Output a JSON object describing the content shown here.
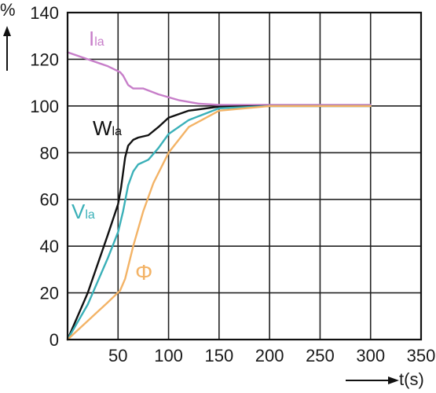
{
  "chart_data": {
    "type": "line",
    "title": "",
    "xlabel": "t(s)",
    "ylabel": "%",
    "xlim": [
      0,
      350
    ],
    "ylim": [
      0,
      140
    ],
    "grid": true,
    "x_ticks": [
      "50",
      "100",
      "150",
      "200",
      "250",
      "300",
      "350"
    ],
    "x_tick_values": [
      50,
      100,
      150,
      200,
      250,
      300,
      350
    ],
    "y_ticks": [
      "0",
      "20",
      "40",
      "60",
      "80",
      "100",
      "120",
      "140"
    ],
    "y_tick_values": [
      0,
      20,
      40,
      60,
      80,
      100,
      120,
      140
    ],
    "series": [
      {
        "label_main": "I",
        "label_sub": "la",
        "color": "#c77ec9",
        "x": [
          0,
          20,
          40,
          52,
          55,
          60,
          65,
          75,
          90,
          110,
          130,
          150,
          170,
          200,
          250,
          300
        ],
        "y": [
          123,
          120,
          117,
          114.5,
          113,
          109,
          107.5,
          107.5,
          105,
          102.5,
          101,
          100.5,
          100.5,
          100.5,
          100.5,
          100.5
        ]
      },
      {
        "label_main": "W",
        "label_sub": "la",
        "color": "#111111",
        "x": [
          0,
          20,
          40,
          50,
          53,
          57,
          60,
          65,
          70,
          80,
          90,
          100,
          120,
          150,
          200,
          250,
          300
        ],
        "y": [
          0,
          20,
          45,
          58,
          65,
          78,
          83,
          85.5,
          86.5,
          87.5,
          91,
          95,
          98,
          99.7,
          100,
          100,
          100
        ]
      },
      {
        "label_main": "V",
        "label_sub": "la",
        "color": "#3ab0b8",
        "x": [
          0,
          20,
          40,
          50,
          55,
          60,
          65,
          70,
          80,
          90,
          100,
          120,
          150,
          200,
          250,
          300
        ],
        "y": [
          0,
          15,
          35,
          46,
          55,
          66,
          72,
          75,
          77,
          82,
          88,
          94,
          99,
          100,
          100,
          100
        ]
      },
      {
        "label_main": "Φ",
        "label_sub": "",
        "color": "#f3b366",
        "x": [
          0,
          20,
          40,
          52,
          57,
          65,
          75,
          85,
          100,
          120,
          150,
          200,
          250,
          300
        ],
        "y": [
          0,
          8,
          16,
          21,
          26,
          40,
          55,
          67,
          80,
          91,
          98,
          100,
          100,
          100
        ]
      }
    ]
  }
}
